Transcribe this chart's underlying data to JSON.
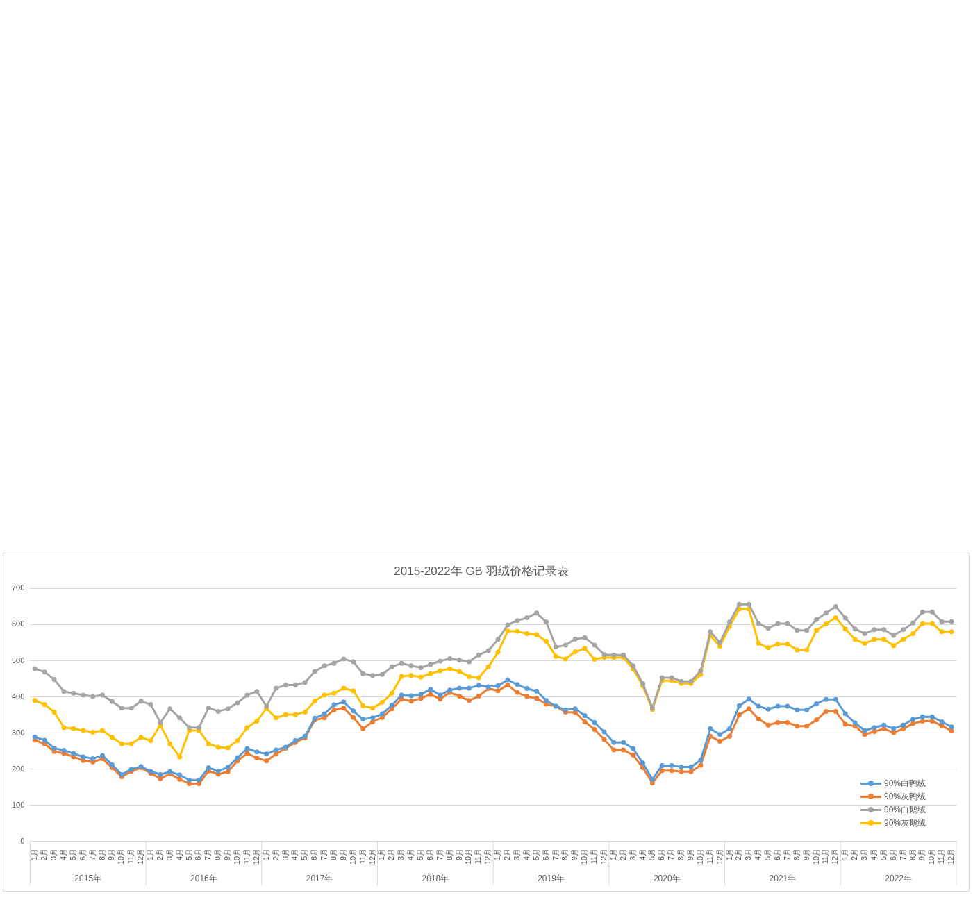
{
  "chart_data": {
    "type": "line",
    "title": "2015-2022年 GB 羽绒价格记录表",
    "categories": [
      "1月",
      "2月",
      "3月",
      "4月",
      "5月",
      "6月",
      "7月",
      "8月",
      "9月",
      "10月",
      "11月",
      "12月",
      "1月",
      "2月",
      "3月",
      "4月",
      "5月",
      "6月",
      "7月",
      "8月",
      "9月",
      "10月",
      "11月",
      "12月",
      "1月",
      "2月",
      "3月",
      "4月",
      "5月",
      "6月",
      "7月",
      "8月",
      "9月",
      "10月",
      "11月",
      "12月",
      "1月",
      "2月",
      "3月",
      "4月",
      "5月",
      "6月",
      "7月",
      "8月",
      "9月",
      "10月",
      "11月",
      "12月",
      "1月",
      "2月",
      "3月",
      "4月",
      "5月",
      "6月",
      "7月",
      "8月",
      "9月",
      "10月",
      "11月",
      "12月",
      "1月",
      "2月",
      "3月",
      "4月",
      "5月",
      "6月",
      "7月",
      "8月",
      "9月",
      "10月",
      "11月",
      "12月",
      "1月",
      "2月",
      "3月",
      "4月",
      "5月",
      "6月",
      "7月",
      "8月",
      "9月",
      "10月",
      "11月",
      "12月",
      "1月",
      "2月",
      "3月",
      "4月",
      "5月",
      "6月",
      "7月",
      "8月",
      "9月",
      "10月",
      "11月",
      "12月"
    ],
    "annotations": [
      "2015年",
      "2016年",
      "2017年",
      "2018年",
      "2019年",
      "2020年",
      "2021年",
      "2022年"
    ],
    "series": [
      {
        "name": "90%白鸭绒",
        "color": "#5b9bd5",
        "values": [
          289,
          280,
          258,
          252,
          243,
          234,
          229,
          238,
          212,
          185,
          200,
          207,
          194,
          185,
          193,
          184,
          170,
          170,
          204,
          195,
          205,
          232,
          257,
          248,
          242,
          253,
          261,
          279,
          291,
          341,
          353,
          378,
          386,
          361,
          338,
          342,
          353,
          377,
          405,
          403,
          407,
          421,
          405,
          419,
          424,
          424,
          432,
          428,
          431,
          447,
          434,
          423,
          416,
          390,
          374,
          364,
          367,
          348,
          329,
          303,
          274,
          274,
          257,
          217,
          172,
          210,
          210,
          206,
          206,
          225,
          312,
          296,
          312,
          375,
          394,
          374,
          366,
          374,
          374,
          364,
          364,
          381,
          393,
          393,
          353,
          328,
          307,
          315,
          322,
          312,
          322,
          338,
          345,
          345,
          331,
          317
        ]
      },
      {
        "name": "90%灰鸭绒",
        "color": "#ed7d31",
        "values": [
          280,
          270,
          249,
          244,
          234,
          224,
          220,
          229,
          204,
          179,
          194,
          204,
          189,
          174,
          187,
          172,
          160,
          160,
          195,
          186,
          193,
          223,
          244,
          231,
          223,
          242,
          258,
          274,
          287,
          336,
          342,
          364,
          369,
          343,
          312,
          331,
          343,
          367,
          394,
          388,
          396,
          407,
          394,
          412,
          402,
          390,
          402,
          423,
          417,
          433,
          412,
          401,
          396,
          380,
          374,
          358,
          357,
          331,
          310,
          282,
          253,
          253,
          239,
          204,
          162,
          196,
          196,
          193,
          193,
          211,
          291,
          277,
          291,
          350,
          367,
          339,
          322,
          329,
          329,
          319,
          319,
          336,
          360,
          360,
          324,
          319,
          296,
          304,
          312,
          301,
          312,
          326,
          333,
          333,
          320,
          306
        ]
      },
      {
        "name": "90%白鹅绒",
        "color": "#a5a5a5",
        "values": [
          478,
          469,
          448,
          415,
          410,
          405,
          401,
          405,
          387,
          369,
          369,
          388,
          379,
          329,
          367,
          342,
          315,
          315,
          370,
          360,
          367,
          384,
          405,
          415,
          374,
          424,
          433,
          433,
          440,
          470,
          486,
          493,
          505,
          497,
          464,
          459,
          462,
          483,
          493,
          486,
          481,
          490,
          499,
          506,
          502,
          497,
          516,
          528,
          559,
          599,
          611,
          619,
          632,
          607,
          538,
          543,
          560,
          564,
          543,
          517,
          516,
          516,
          486,
          437,
          369,
          453,
          453,
          443,
          443,
          472,
          580,
          550,
          607,
          656,
          656,
          603,
          590,
          603,
          603,
          584,
          584,
          614,
          632,
          650,
          618,
          588,
          575,
          586,
          586,
          570,
          586,
          604,
          635,
          635,
          608,
          608
        ]
      },
      {
        "name": "90%灰鹅绒",
        "color": "#ffc000",
        "values": [
          390,
          379,
          358,
          315,
          312,
          307,
          302,
          307,
          288,
          270,
          270,
          288,
          279,
          322,
          270,
          234,
          307,
          307,
          270,
          261,
          259,
          279,
          315,
          333,
          368,
          342,
          351,
          351,
          358,
          389,
          405,
          410,
          424,
          417,
          375,
          369,
          385,
          410,
          457,
          459,
          455,
          464,
          472,
          478,
          470,
          456,
          453,
          483,
          524,
          582,
          581,
          575,
          572,
          554,
          512,
          505,
          525,
          534,
          504,
          509,
          509,
          509,
          477,
          431,
          365,
          445,
          445,
          437,
          437,
          462,
          570,
          540,
          595,
          643,
          643,
          548,
          536,
          546,
          546,
          530,
          530,
          584,
          602,
          619,
          588,
          559,
          548,
          559,
          559,
          542,
          559,
          575,
          603,
          603,
          580,
          580
        ]
      }
    ],
    "ylim": [
      0,
      700
    ],
    "yticks": [
      0,
      100,
      200,
      300,
      400,
      500,
      600,
      700
    ],
    "grid": "y",
    "legend": "bottom right",
    "marker": "circle",
    "line_style": "solid"
  }
}
